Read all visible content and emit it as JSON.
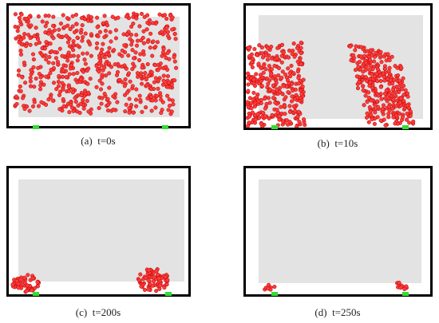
{
  "colors": {
    "frame": "#000000",
    "floor": "#e3e3e3",
    "pedestrian_fill": "#ff3b3b",
    "pedestrian_edge": "#b40000",
    "exit": "#33dd33"
  },
  "panels": [
    {
      "id": "a",
      "caption": "(a)  t=0s"
    },
    {
      "id": "b",
      "caption": "(b)  t=10s"
    },
    {
      "id": "c",
      "caption": "(c)  t=200s"
    },
    {
      "id": "d",
      "caption": "(d)  t=250s"
    }
  ]
}
